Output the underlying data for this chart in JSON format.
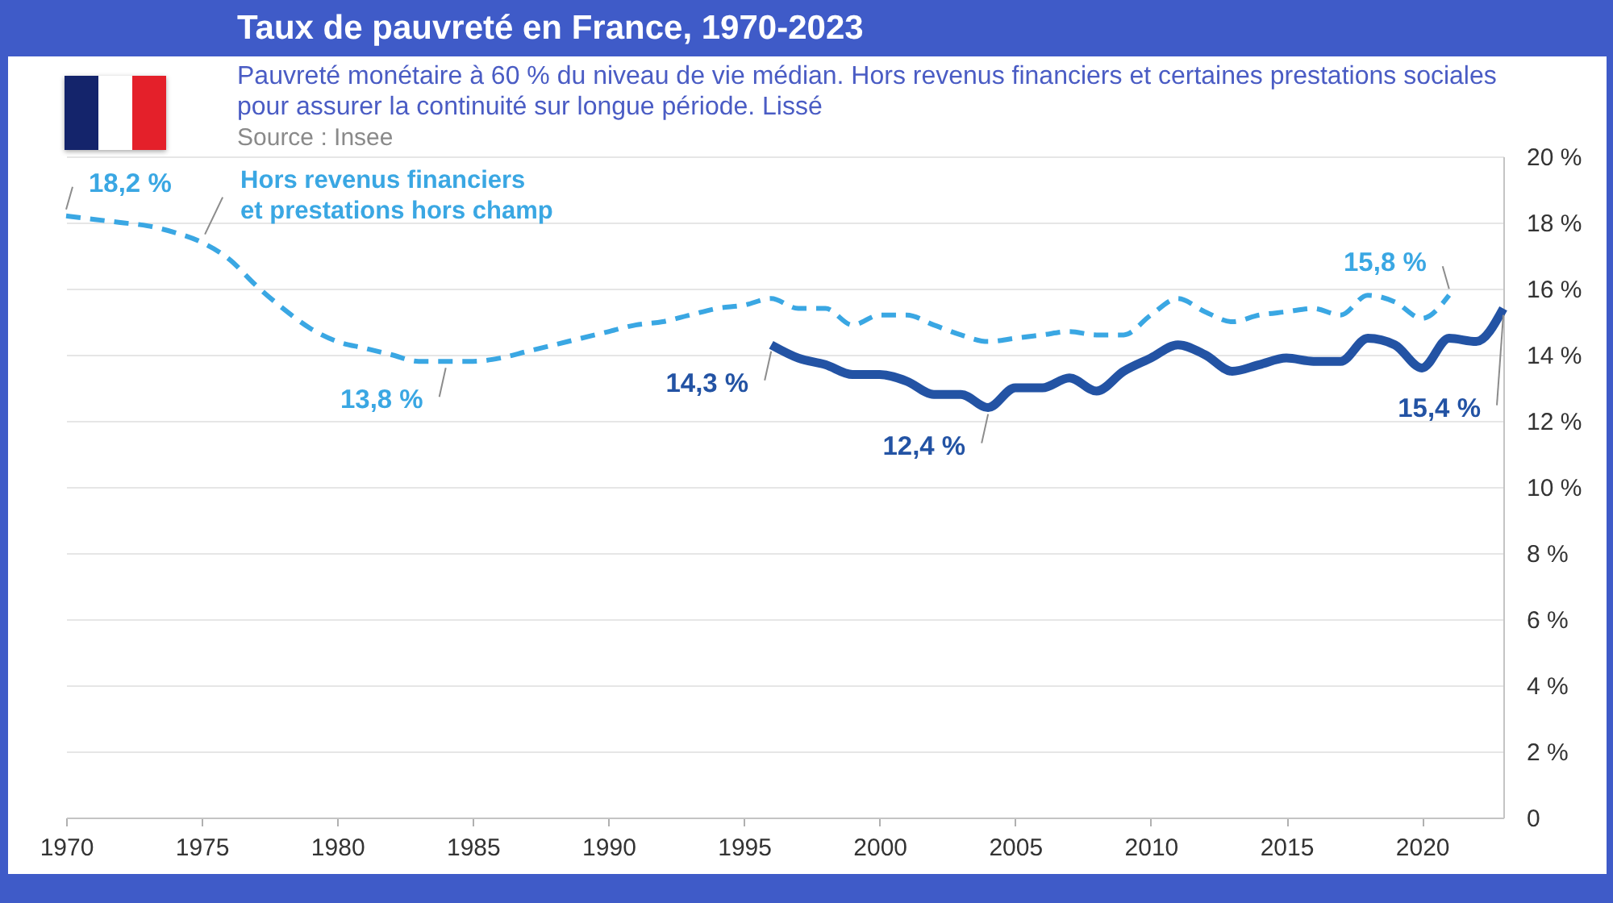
{
  "chart_data": {
    "type": "line",
    "title": "Taux de pauvreté en France, 1970-2023",
    "subtitle": "Pauvreté monétaire à 60 % du niveau de vie médian. Hors revenus financiers et certaines prestations sociales pour assurer la continuité sur longue période. Lissé",
    "annotations": [
      "Source : Insee"
    ],
    "xlim": [
      1970,
      2023
    ],
    "xticks": [
      1970,
      1975,
      1980,
      1985,
      1990,
      1995,
      2000,
      2005,
      2010,
      2015,
      2020
    ],
    "ylim": [
      0,
      20
    ],
    "yticks": [
      0,
      {
        "value": 2,
        "label": "2 %"
      },
      {
        "value": 4,
        "label": "4 %"
      },
      {
        "value": 6,
        "label": "6 %"
      },
      {
        "value": 8,
        "label": "8 %"
      },
      {
        "value": 10,
        "label": "10 %"
      },
      {
        "value": 12,
        "label": "12 %"
      },
      {
        "value": 14,
        "label": "14 %"
      },
      {
        "value": 16,
        "label": "16 %"
      },
      {
        "value": 18,
        "label": "18 %"
      },
      {
        "value": 20,
        "label": "20 %"
      }
    ],
    "grid": "y",
    "series": [
      {
        "name": "Hors revenus financiers et prestations hors champ",
        "color": "#3aa7e3",
        "line_style": "dashed",
        "x": [
          1970,
          1971,
          1972,
          1973,
          1974,
          1975,
          1976,
          1977,
          1978,
          1979,
          1980,
          1981,
          1982,
          1983,
          1984,
          1985,
          1986,
          1987,
          1988,
          1989,
          1990,
          1991,
          1992,
          1993,
          1994,
          1995,
          1996,
          1997,
          1998,
          1999,
          2000,
          2001,
          2002,
          2003,
          2004,
          2005,
          2006,
          2007,
          2008,
          2009,
          2010,
          2011,
          2012,
          2013,
          2014,
          2015,
          2016,
          2017,
          2018,
          2019,
          2020,
          2021
        ],
        "values": [
          18.2,
          18.1,
          18.0,
          17.9,
          17.7,
          17.4,
          16.9,
          16.1,
          15.4,
          14.8,
          14.4,
          14.2,
          14.0,
          13.8,
          13.8,
          13.8,
          13.9,
          14.1,
          14.3,
          14.5,
          14.7,
          14.9,
          15.0,
          15.2,
          15.4,
          15.5,
          15.7,
          15.4,
          15.4,
          14.9,
          15.2,
          15.2,
          14.9,
          14.6,
          14.4,
          14.5,
          14.6,
          14.7,
          14.6,
          14.6,
          15.2,
          15.7,
          15.3,
          15.0,
          15.2,
          15.3,
          15.4,
          15.2,
          15.8,
          15.6,
          15.1,
          15.8
        ],
        "value_labels": [
          "18,2 %",
          null,
          null,
          null,
          null,
          null,
          null,
          null,
          null,
          null,
          null,
          null,
          null,
          null,
          "13,8 %",
          null,
          null,
          null,
          null,
          null,
          null,
          null,
          null,
          null,
          null,
          null,
          null,
          null,
          null,
          null,
          null,
          null,
          null,
          null,
          null,
          null,
          null,
          null,
          null,
          null,
          null,
          null,
          null,
          null,
          null,
          null,
          null,
          null,
          null,
          null,
          null,
          "15,8 %"
        ]
      },
      {
        "color": "#2353a4",
        "line_style": "solid",
        "x": [
          1996,
          1997,
          1998,
          1999,
          2000,
          2001,
          2002,
          2003,
          2004,
          2005,
          2006,
          2007,
          2008,
          2009,
          2010,
          2011,
          2012,
          2013,
          2014,
          2015,
          2016,
          2017,
          2018,
          2019,
          2020,
          2021,
          2022,
          2023
        ],
        "values": [
          14.3,
          13.9,
          13.7,
          13.4,
          13.4,
          13.2,
          12.8,
          12.8,
          12.4,
          13.0,
          13.0,
          13.3,
          12.9,
          13.5,
          13.9,
          14.3,
          14.0,
          13.5,
          13.7,
          13.9,
          13.8,
          13.8,
          14.5,
          14.3,
          13.6,
          14.5,
          14.4,
          15.4
        ],
        "value_labels": [
          "14,3 %",
          null,
          null,
          null,
          null,
          null,
          null,
          null,
          "12,4 %",
          null,
          null,
          null,
          null,
          null,
          null,
          null,
          null,
          null,
          null,
          null,
          null,
          null,
          null,
          null,
          null,
          null,
          null,
          "15,4 %"
        ]
      }
    ]
  }
}
